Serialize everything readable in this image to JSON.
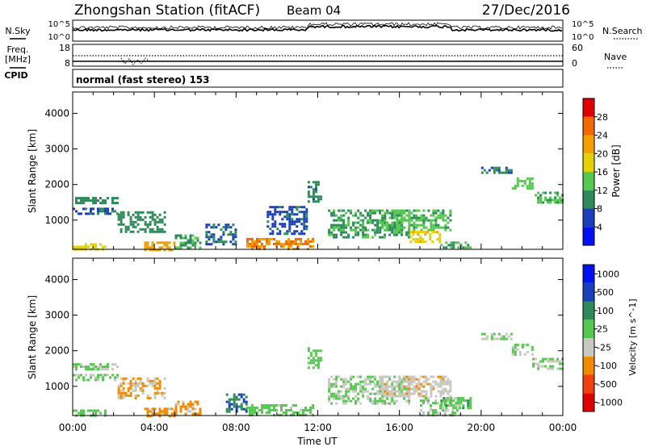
{
  "header": {
    "station": "Zhongshan Station (fitACF)",
    "beam": "Beam 04",
    "date": "27/Dec/2016"
  },
  "noise_panel": {
    "left_label": "N.Sky",
    "right_label": "N.Search",
    "left_ticks": [
      "10^5",
      "10^0"
    ],
    "right_ticks": [
      "10^5",
      "10^0"
    ]
  },
  "freq_panel": {
    "left_label_line1": "Freq.",
    "left_label_line2": "[MHz]",
    "left_ticks": [
      "18",
      "8"
    ],
    "right_ticks": [
      "60",
      "0"
    ],
    "right_label": "Nave",
    "cpid_label": "CPID",
    "mode_text": "normal (fast stereo) 153"
  },
  "x_axis": {
    "label": "Time UT",
    "ticks": [
      "00:00",
      "04:00",
      "08:00",
      "12:00",
      "16:00",
      "20:00",
      "00:00"
    ]
  },
  "colors": {
    "power": [
      "#0010f0",
      "#1a3fb8",
      "#2f8a5a",
      "#55c850",
      "#e4d200",
      "#f2a000",
      "#f06a00",
      "#e00000"
    ],
    "velocity": [
      "#e00000",
      "#f04010",
      "#f08a00",
      "#c8c8c0",
      "#55c850",
      "#2f8a5a",
      "#1a3fb8",
      "#0010f0"
    ],
    "ground_scatter": "#c8c8c0"
  },
  "chart_data": [
    {
      "type": "heatmap",
      "title": "",
      "xlabel": "",
      "ylabel": "Slant Range [km]",
      "xlim": [
        0,
        24
      ],
      "ylim": [
        180,
        4600
      ],
      "yticks": [
        "1000",
        "2000",
        "3000",
        "4000"
      ],
      "colorbar_label": "Power [dB]",
      "colorbar_ticks": [
        "4",
        "8",
        "12",
        "16",
        "20",
        "24",
        "28"
      ],
      "clim": [
        0,
        32
      ],
      "regions": [
        {
          "t": [
            0.0,
            2.2
          ],
          "r": [
            1150,
            1350
          ],
          "value": 7
        },
        {
          "t": [
            0.0,
            2.2
          ],
          "r": [
            1450,
            1650
          ],
          "value": 10
        },
        {
          "t": [
            0.0,
            1.6
          ],
          "r": [
            180,
            350
          ],
          "value": 18
        },
        {
          "t": [
            2.2,
            4.5
          ],
          "r": [
            650,
            1250
          ],
          "value": 10
        },
        {
          "t": [
            3.5,
            5.0
          ],
          "r": [
            180,
            400
          ],
          "value": 22
        },
        {
          "t": [
            5.0,
            6.2
          ],
          "r": [
            200,
            600
          ],
          "value": 12
        },
        {
          "t": [
            6.5,
            8.0
          ],
          "r": [
            300,
            900
          ],
          "value": 8
        },
        {
          "t": [
            8.5,
            11.8
          ],
          "r": [
            180,
            500
          ],
          "value": 24
        },
        {
          "t": [
            9.5,
            11.5
          ],
          "r": [
            600,
            1400
          ],
          "value": 7
        },
        {
          "t": [
            11.5,
            12.2
          ],
          "r": [
            1500,
            2100
          ],
          "value": 9
        },
        {
          "t": [
            12.5,
            16.5
          ],
          "r": [
            500,
            1300
          ],
          "value": 11
        },
        {
          "t": [
            15.0,
            18.5
          ],
          "r": [
            700,
            1300
          ],
          "value": 13
        },
        {
          "t": [
            16.5,
            18.0
          ],
          "r": [
            400,
            700
          ],
          "value": 19
        },
        {
          "t": [
            18.0,
            19.5
          ],
          "r": [
            200,
            400
          ],
          "value": 12
        },
        {
          "t": [
            20.0,
            21.5
          ],
          "r": [
            2300,
            2500
          ],
          "value": 9
        },
        {
          "t": [
            21.5,
            22.5
          ],
          "r": [
            1900,
            2200
          ],
          "value": 14
        },
        {
          "t": [
            22.5,
            24.0
          ],
          "r": [
            1500,
            1800
          ],
          "value": 12
        }
      ]
    },
    {
      "type": "heatmap",
      "title": "",
      "xlabel": "Time UT",
      "ylabel": "Slant Range [km]",
      "xlim": [
        0,
        24
      ],
      "ylim": [
        180,
        4600
      ],
      "yticks": [
        "1000",
        "2000",
        "3000",
        "4000"
      ],
      "colorbar_label": "Velocity [m s^-1]",
      "colorbar_ticks": [
        "1000",
        "500",
        "100",
        "25",
        "-25",
        "-100",
        "-500",
        "-1000"
      ],
      "clim": [
        -1200,
        1200
      ],
      "regions": [
        {
          "t": [
            0.0,
            2.2
          ],
          "r": [
            1150,
            1350
          ],
          "value": 0
        },
        {
          "t": [
            0.0,
            2.2
          ],
          "r": [
            1450,
            1650
          ],
          "value": 0
        },
        {
          "t": [
            0.0,
            1.6
          ],
          "r": [
            180,
            350
          ],
          "value": 150
        },
        {
          "t": [
            2.2,
            4.5
          ],
          "r": [
            650,
            1250
          ],
          "value": -300
        },
        {
          "t": [
            3.5,
            5.0
          ],
          "r": [
            180,
            400
          ],
          "value": -400
        },
        {
          "t": [
            5.0,
            6.2
          ],
          "r": [
            200,
            600
          ],
          "value": -400
        },
        {
          "t": [
            7.5,
            8.5
          ],
          "r": [
            300,
            800
          ],
          "value": 600
        },
        {
          "t": [
            8.5,
            11.8
          ],
          "r": [
            180,
            500
          ],
          "value": 120
        },
        {
          "t": [
            11.5,
            12.2
          ],
          "r": [
            1500,
            2100
          ],
          "value": 150
        },
        {
          "t": [
            12.5,
            16.5
          ],
          "r": [
            500,
            1300
          ],
          "value": 0
        },
        {
          "t": [
            15.0,
            18.5
          ],
          "r": [
            700,
            1300
          ],
          "value": -200
        },
        {
          "t": [
            17.0,
            19.0
          ],
          "r": [
            200,
            700
          ],
          "value": 0
        },
        {
          "t": [
            18.0,
            19.5
          ],
          "r": [
            400,
            700
          ],
          "value": 200
        },
        {
          "t": [
            20.0,
            21.5
          ],
          "r": [
            2300,
            2500
          ],
          "value": 0
        },
        {
          "t": [
            21.5,
            22.5
          ],
          "r": [
            1900,
            2200
          ],
          "value": 0
        },
        {
          "t": [
            22.5,
            24.0
          ],
          "r": [
            1500,
            1800
          ],
          "value": 0
        }
      ]
    }
  ]
}
